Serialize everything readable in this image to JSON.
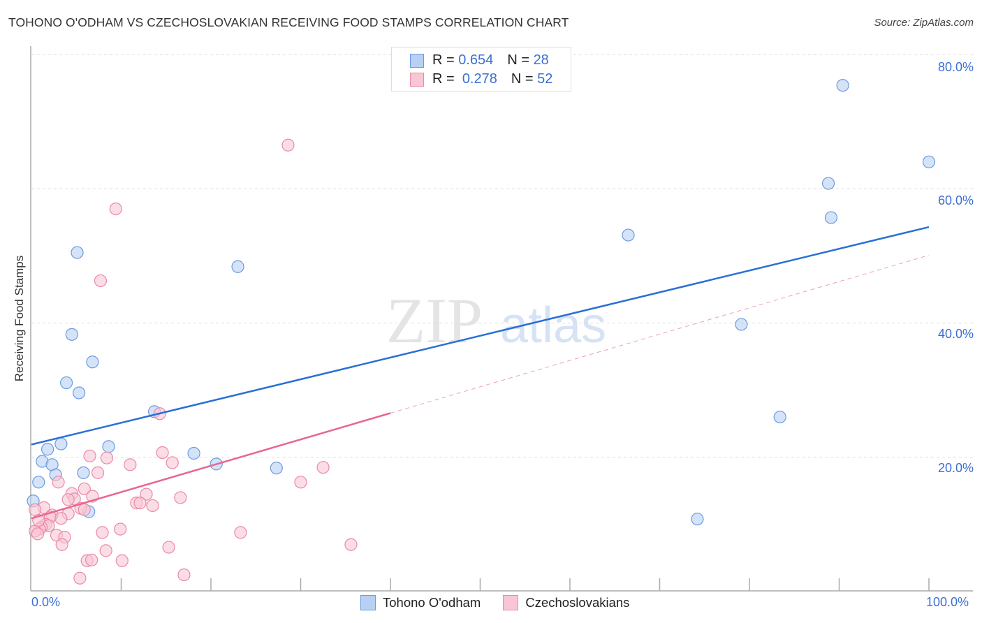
{
  "title": "TOHONO O'ODHAM VS CZECHOSLOVAKIAN RECEIVING FOOD STAMPS CORRELATION CHART",
  "source": "Source: ZipAtlas.com",
  "watermark": "ZIPatlas",
  "legend": {
    "rows": [
      {
        "r_label": "R =",
        "r_value": "0.654",
        "n_label": "N =",
        "n_value": "28"
      },
      {
        "r_label": "R =",
        "r_value": "0.278",
        "n_label": "N =",
        "n_value": "52"
      }
    ]
  },
  "bottom_legend": [
    "Tohono O'odham",
    "Czechoslovakians"
  ],
  "chart_data": {
    "type": "scatter",
    "title": "TOHONO O'ODHAM VS CZECHOSLOVAKIAN RECEIVING FOOD STAMPS CORRELATION CHART",
    "xlabel": "",
    "ylabel": "Receiving Food Stamps",
    "xlim": [
      0,
      100
    ],
    "ylim": [
      0,
      80
    ],
    "x_tick_labels": [
      "0.0%",
      "100.0%"
    ],
    "y_ticks": [
      20,
      40,
      60,
      80
    ],
    "y_tick_labels": [
      "20.0%",
      "40.0%",
      "60.0%",
      "80.0%"
    ],
    "grid": "horizontal dashed",
    "legend_position": "top-center",
    "series": [
      {
        "name": "Tohono O'odham",
        "color": "#6b9be0",
        "fill": "#b7d0f4",
        "trend": {
          "x": [
            0,
            100
          ],
          "y": [
            21.9,
            54.3
          ],
          "dashed_from": null
        },
        "points": [
          [
            90.4,
            75.4
          ],
          [
            100,
            64.0
          ],
          [
            88.8,
            60.8
          ],
          [
            89.1,
            55.7
          ],
          [
            66.5,
            53.1
          ],
          [
            23.0,
            48.4
          ],
          [
            5.1,
            50.5
          ],
          [
            79.1,
            39.8
          ],
          [
            4.5,
            38.3
          ],
          [
            6.8,
            34.2
          ],
          [
            3.9,
            31.1
          ],
          [
            5.3,
            29.6
          ],
          [
            13.7,
            26.8
          ],
          [
            83.4,
            26.0
          ],
          [
            3.3,
            22.0
          ],
          [
            8.6,
            21.6
          ],
          [
            1.8,
            21.2
          ],
          [
            18.1,
            20.6
          ],
          [
            1.2,
            19.4
          ],
          [
            2.3,
            18.9
          ],
          [
            20.6,
            19.0
          ],
          [
            2.7,
            17.4
          ],
          [
            5.8,
            17.7
          ],
          [
            27.3,
            18.4
          ],
          [
            0.8,
            16.3
          ],
          [
            0.2,
            13.5
          ],
          [
            6.4,
            11.9
          ],
          [
            74.2,
            10.8
          ]
        ]
      },
      {
        "name": "Czechoslovakians",
        "color": "#e98aa8",
        "fill": "#f8c6d5",
        "trend": {
          "x": [
            0,
            100
          ],
          "y": [
            10.9,
            50.1
          ],
          "dashed_from": 40
        },
        "points": [
          [
            28.6,
            66.5
          ],
          [
            9.4,
            57.0
          ],
          [
            7.7,
            46.3
          ],
          [
            14.3,
            26.5
          ],
          [
            14.6,
            20.7
          ],
          [
            6.5,
            20.2
          ],
          [
            8.4,
            19.9
          ],
          [
            11.0,
            18.9
          ],
          [
            15.7,
            19.2
          ],
          [
            32.5,
            18.5
          ],
          [
            7.4,
            17.7
          ],
          [
            3.0,
            16.3
          ],
          [
            30.0,
            16.3
          ],
          [
            5.9,
            15.3
          ],
          [
            4.5,
            14.6
          ],
          [
            4.8,
            13.8
          ],
          [
            4.1,
            13.7
          ],
          [
            6.8,
            14.2
          ],
          [
            12.8,
            14.5
          ],
          [
            16.6,
            14.0
          ],
          [
            11.7,
            13.2
          ],
          [
            12.1,
            13.2
          ],
          [
            13.5,
            12.8
          ],
          [
            1.4,
            12.5
          ],
          [
            5.5,
            12.4
          ],
          [
            5.9,
            12.2
          ],
          [
            4.1,
            11.6
          ],
          [
            2.3,
            11.4
          ],
          [
            2.1,
            11.1
          ],
          [
            0.4,
            12.2
          ],
          [
            1.6,
            10.0
          ],
          [
            1.9,
            9.8
          ],
          [
            1.1,
            9.6
          ],
          [
            0.9,
            9.3
          ],
          [
            0.4,
            9.0
          ],
          [
            0.7,
            8.6
          ],
          [
            2.8,
            8.4
          ],
          [
            3.7,
            8.1
          ],
          [
            3.4,
            7.0
          ],
          [
            7.9,
            8.8
          ],
          [
            9.9,
            9.3
          ],
          [
            23.3,
            8.8
          ],
          [
            35.6,
            7.0
          ],
          [
            15.3,
            6.6
          ],
          [
            8.3,
            6.1
          ],
          [
            6.2,
            4.6
          ],
          [
            6.7,
            4.7
          ],
          [
            10.1,
            4.6
          ],
          [
            17.0,
            2.5
          ],
          [
            5.4,
            2.0
          ],
          [
            0.8,
            10.6
          ],
          [
            3.3,
            10.9
          ]
        ]
      }
    ]
  }
}
